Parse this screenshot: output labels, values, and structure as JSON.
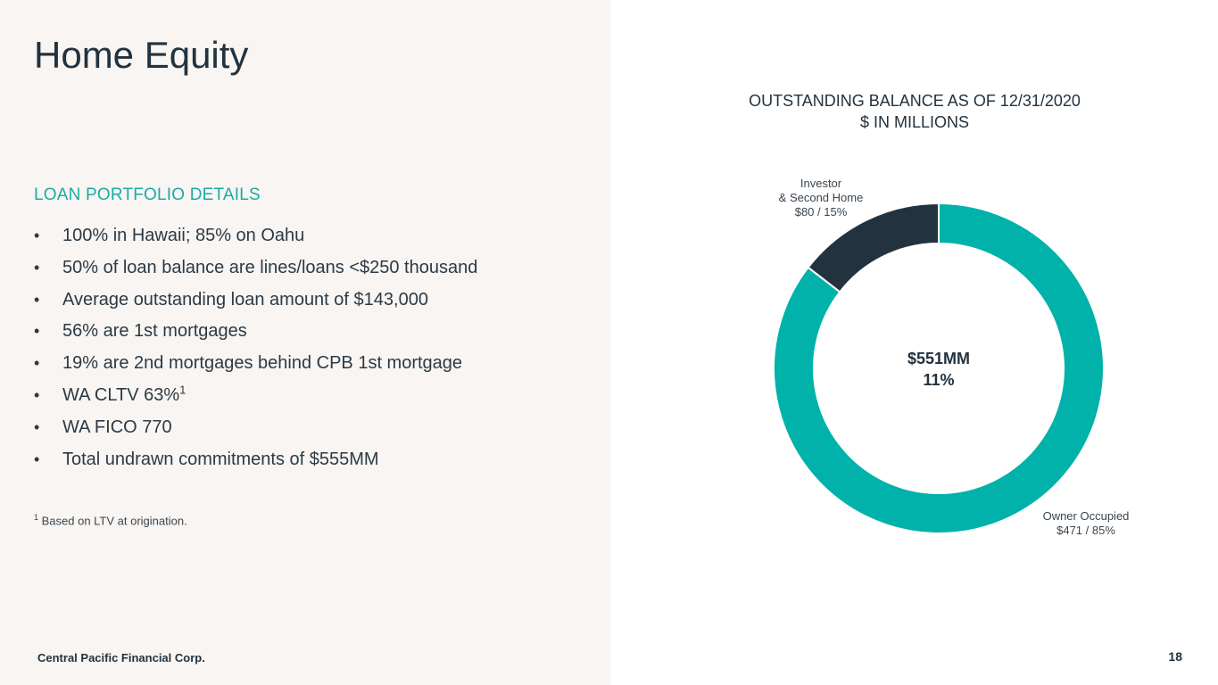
{
  "page": {
    "title": "Home Equity",
    "company": "Central Pacific Financial Corp.",
    "page_number": "18"
  },
  "portfolio": {
    "heading": "LOAN PORTFOLIO DETAILS",
    "bullet_char": "•",
    "bullets": [
      "100% in Hawaii; 85% on Oahu",
      "50% of loan balance are lines/loans <$250 thousand",
      "Average outstanding loan amount of $143,000",
      "56% are 1st mortgages",
      "19% are 2nd mortgages behind CPB 1st mortgage",
      "WA CLTV 63%",
      "WA FICO 770",
      "Total undrawn commitments of $555MM"
    ],
    "cltv_footnote_marker": "1",
    "footnote_marker": "1",
    "footnote_text": " Based on LTV at origination."
  },
  "chart_data": {
    "type": "pie",
    "subtype": "donut",
    "title": "OUTSTANDING BALANCE AS OF 12/31/2020",
    "subtitle": "$ IN MILLIONS",
    "center_line1": "$551MM",
    "center_line2": "11%",
    "total": 551,
    "slices": [
      {
        "name": "Owner Occupied",
        "value": 471,
        "percent": 85,
        "color": "#00b2a9",
        "label_line1": "Owner Occupied",
        "label_line2": "$471 / 85%"
      },
      {
        "name": "Investor & Second Home",
        "value": 80,
        "percent": 15,
        "color": "#22323f",
        "label_line1": "Investor",
        "label_line2": "& Second Home",
        "label_line3": "$80 / 15%"
      }
    ]
  }
}
